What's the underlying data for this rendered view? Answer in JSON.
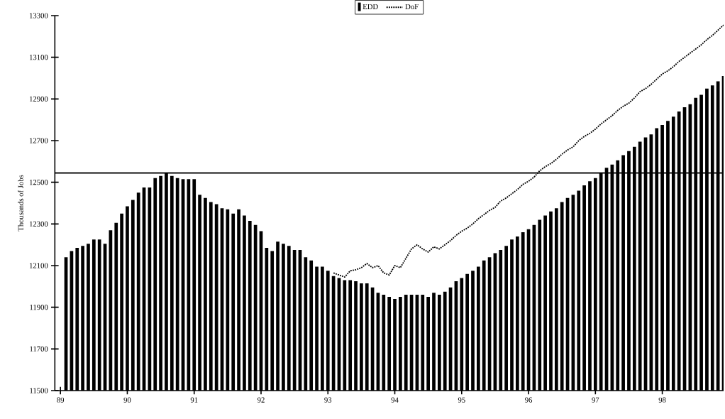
{
  "chart_data": {
    "type": "bar",
    "ylabel": "Thousands of Jobs",
    "x": [
      "1989-02",
      "1989-03",
      "1989-04",
      "1989-05",
      "1989-06",
      "1989-07",
      "1989-08",
      "1989-09",
      "1989-10",
      "1989-11",
      "1989-12",
      "1990-01",
      "1990-02",
      "1990-03",
      "1990-04",
      "1990-05",
      "1990-06",
      "1990-07",
      "1990-08",
      "1990-09",
      "1990-10",
      "1990-11",
      "1990-12",
      "1991-01",
      "1991-02",
      "1991-03",
      "1991-04",
      "1991-05",
      "1991-06",
      "1991-07",
      "1991-08",
      "1991-09",
      "1991-10",
      "1991-11",
      "1991-12",
      "1992-01",
      "1992-02",
      "1992-03",
      "1992-04",
      "1992-05",
      "1992-06",
      "1992-07",
      "1992-08",
      "1992-09",
      "1992-10",
      "1992-11",
      "1992-12",
      "1993-01",
      "1993-02",
      "1993-03",
      "1993-04",
      "1993-05",
      "1993-06",
      "1993-07",
      "1993-08",
      "1993-09",
      "1993-10",
      "1993-11",
      "1993-12",
      "1994-01",
      "1994-02",
      "1994-03",
      "1994-04",
      "1994-05",
      "1994-06",
      "1994-07",
      "1994-08",
      "1994-09",
      "1994-10",
      "1994-11",
      "1994-12",
      "1995-01",
      "1995-02",
      "1995-03",
      "1995-04",
      "1995-05",
      "1995-06",
      "1995-07",
      "1995-08",
      "1995-09",
      "1995-10",
      "1995-11",
      "1995-12",
      "1996-01",
      "1996-02",
      "1996-03",
      "1996-04",
      "1996-05",
      "1996-06",
      "1996-07",
      "1996-08",
      "1996-09",
      "1996-10",
      "1996-11",
      "1996-12",
      "1997-01",
      "1997-02",
      "1997-03",
      "1997-04",
      "1997-05",
      "1997-06",
      "1997-07",
      "1997-08",
      "1997-09",
      "1997-10",
      "1997-11",
      "1997-12",
      "1998-01",
      "1998-02",
      "1998-03",
      "1998-04",
      "1998-05",
      "1998-06",
      "1998-07",
      "1998-08",
      "1998-09",
      "1998-10",
      "1998-11",
      "1998-12"
    ],
    "series": [
      {
        "name": "EDD",
        "color": "#000000",
        "values": [
          12140,
          12170,
          12185,
          12195,
          12205,
          12225,
          12225,
          12205,
          12270,
          12305,
          12350,
          12385,
          12415,
          12450,
          12475,
          12475,
          12520,
          12530,
          12545,
          12530,
          12520,
          12515,
          12515,
          12515,
          12440,
          12425,
          12405,
          12395,
          12375,
          12370,
          12350,
          12370,
          12340,
          12315,
          12295,
          12265,
          12185,
          12170,
          12215,
          12205,
          12195,
          12175,
          12175,
          12140,
          12125,
          12095,
          12095,
          12075,
          12050,
          12040,
          12030,
          12030,
          12025,
          12015,
          12015,
          11995,
          11970,
          11960,
          11950,
          11940,
          11950,
          11960,
          11960,
          11960,
          11960,
          11950,
          11970,
          11960,
          11975,
          11995,
          12025,
          12040,
          12060,
          12075,
          12095,
          12125,
          12140,
          12160,
          12175,
          12195,
          12225,
          12240,
          12260,
          12275,
          12295,
          12320,
          12340,
          12360,
          12375,
          12405,
          12425,
          12440,
          12460,
          12485,
          12505,
          12520,
          12545,
          12570,
          12585,
          12605,
          12630,
          12650,
          12670,
          12695,
          12715,
          12730,
          12760,
          12775,
          12795,
          12815,
          12840,
          12860,
          12875,
          12905,
          12920,
          12950,
          12965,
          12985,
          13010
        ]
      },
      {
        "name": "DoF",
        "type": "line",
        "color": "#000000",
        "line_style": "dotted",
        "values": [
          null,
          null,
          null,
          null,
          null,
          null,
          null,
          null,
          null,
          null,
          null,
          null,
          null,
          null,
          null,
          null,
          null,
          null,
          null,
          null,
          null,
          null,
          null,
          null,
          null,
          null,
          null,
          null,
          null,
          null,
          null,
          null,
          null,
          null,
          null,
          null,
          null,
          null,
          null,
          null,
          null,
          null,
          null,
          null,
          null,
          null,
          null,
          null,
          12065,
          12055,
          12045,
          12075,
          12080,
          12090,
          12110,
          12090,
          12100,
          12065,
          12055,
          12100,
          12090,
          12135,
          12180,
          12200,
          12180,
          12165,
          12190,
          12180,
          12200,
          12220,
          12245,
          12265,
          12280,
          12300,
          12325,
          12345,
          12365,
          12380,
          12410,
          12425,
          12445,
          12465,
          12490,
          12505,
          12525,
          12555,
          12575,
          12590,
          12610,
          12635,
          12655,
          12670,
          12700,
          12720,
          12735,
          12755,
          12780,
          12800,
          12820,
          12845,
          12865,
          12880,
          12905,
          12935,
          12950,
          12970,
          12995,
          13020,
          13035,
          13055,
          13080,
          13100,
          13120,
          13140,
          13160,
          13185,
          13205,
          13230,
          13255
        ]
      }
    ],
    "xlim": [
      "1988-12",
      "1998-12"
    ],
    "xticks": [
      {
        "value": "1989",
        "label": "89"
      },
      {
        "value": "1990",
        "label": "90"
      },
      {
        "value": "1991",
        "label": "91"
      },
      {
        "value": "1992",
        "label": "92"
      },
      {
        "value": "1993",
        "label": "93"
      },
      {
        "value": "1994",
        "label": "94"
      },
      {
        "value": "1995",
        "label": "95"
      },
      {
        "value": "1996",
        "label": "96"
      },
      {
        "value": "1997",
        "label": "97"
      },
      {
        "value": "1998",
        "label": "98"
      }
    ],
    "ylim": [
      11500,
      13300
    ],
    "yticks": [
      11500,
      11700,
      11900,
      12100,
      12300,
      12500,
      12700,
      12900,
      13100,
      13300
    ],
    "ref_lines": [
      {
        "axis": "y",
        "value": 12545,
        "color": "#000000"
      }
    ],
    "legend": "top",
    "grid": false
  }
}
